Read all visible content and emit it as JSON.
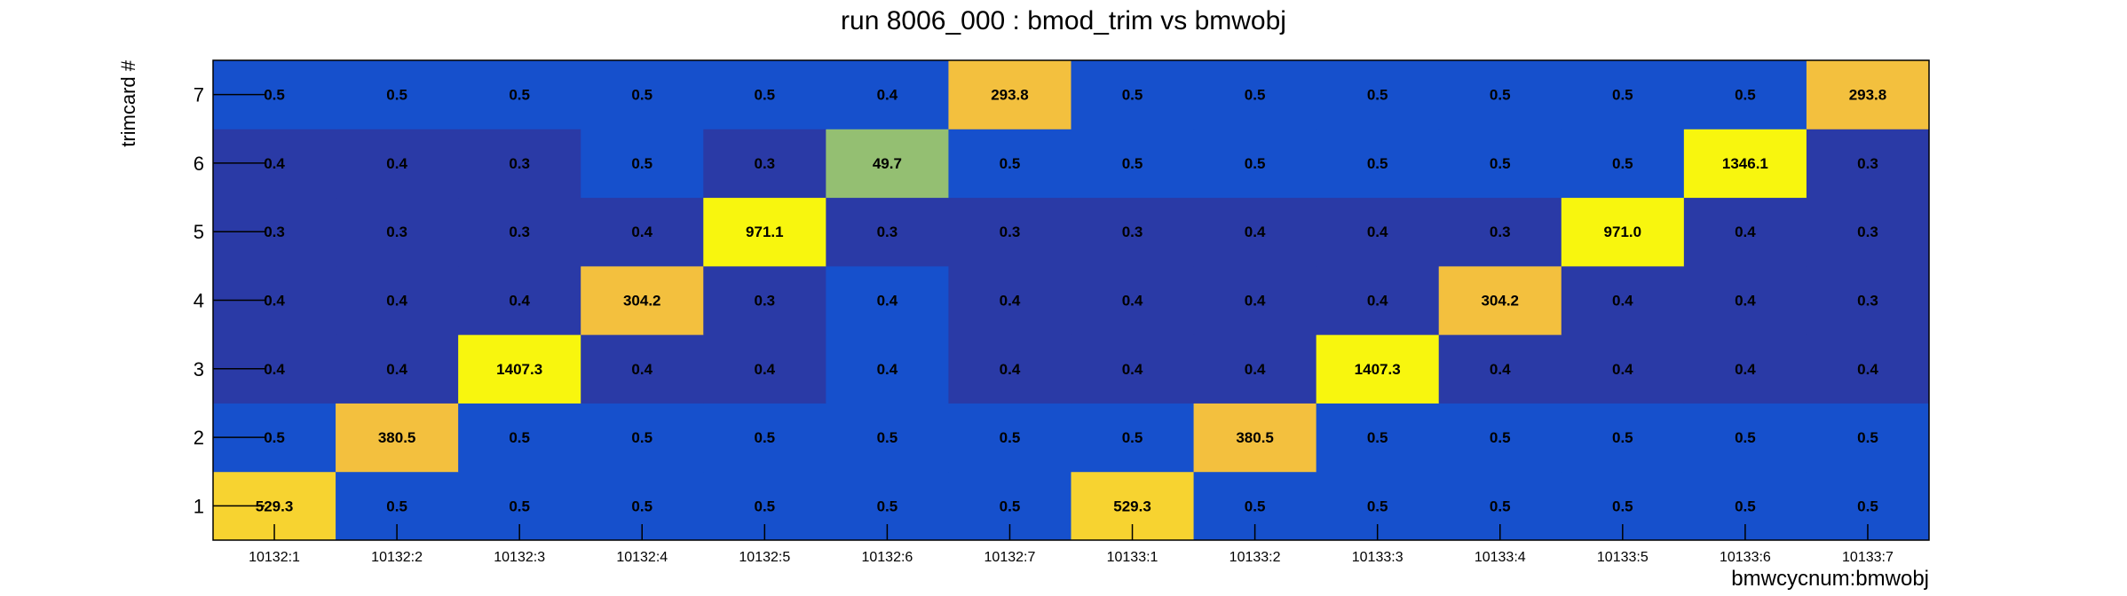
{
  "chart_data": {
    "type": "heatmap",
    "title": "run 8006_000 : bmod_trim vs bmwobj",
    "xlabel": "bmwcycnum:bmwobj",
    "ylabel": "trimcard #",
    "x_categories": [
      "10132:1",
      "10132:2",
      "10132:3",
      "10132:4",
      "10132:5",
      "10132:6",
      "10132:7",
      "10133:1",
      "10133:2",
      "10133:3",
      "10133:4",
      "10133:5",
      "10133:6",
      "10133:7"
    ],
    "y_categories": [
      "1",
      "2",
      "3",
      "4",
      "5",
      "6",
      "7"
    ],
    "values": [
      [
        529.3,
        0.5,
        0.5,
        0.5,
        0.5,
        0.5,
        0.5,
        529.3,
        0.5,
        0.5,
        0.5,
        0.5,
        0.5,
        0.5
      ],
      [
        0.5,
        380.5,
        0.5,
        0.5,
        0.5,
        0.5,
        0.5,
        0.5,
        380.5,
        0.5,
        0.5,
        0.5,
        0.5,
        0.5
      ],
      [
        0.4,
        0.4,
        1407.3,
        0.4,
        0.4,
        0.4,
        0.4,
        0.4,
        0.4,
        1407.3,
        0.4,
        0.4,
        0.4,
        0.4
      ],
      [
        0.4,
        0.4,
        0.4,
        304.2,
        0.3,
        0.4,
        0.4,
        0.4,
        0.4,
        0.4,
        304.2,
        0.4,
        0.4,
        0.3
      ],
      [
        0.3,
        0.3,
        0.3,
        0.4,
        971.1,
        0.3,
        0.3,
        0.3,
        0.4,
        0.4,
        0.3,
        971.0,
        0.4,
        0.3
      ],
      [
        0.4,
        0.4,
        0.3,
        0.5,
        0.3,
        49.7,
        0.5,
        0.5,
        0.5,
        0.5,
        0.5,
        0.5,
        1346.1,
        0.3
      ],
      [
        0.5,
        0.5,
        0.5,
        0.5,
        0.5,
        0.4,
        293.8,
        0.5,
        0.5,
        0.5,
        0.5,
        0.5,
        0.5,
        293.8
      ]
    ],
    "cell_colors": [
      [
        "#f7d330",
        "#1650cc",
        "#1650cc",
        "#1650cc",
        "#1650cc",
        "#1650cc",
        "#1650cc",
        "#f7d330",
        "#1650cc",
        "#1650cc",
        "#1650cc",
        "#1650cc",
        "#1650cc",
        "#1650cc"
      ],
      [
        "#1650cc",
        "#f3c03e",
        "#1650cc",
        "#1650cc",
        "#1650cc",
        "#1650cc",
        "#1650cc",
        "#1650cc",
        "#f3c03e",
        "#1650cc",
        "#1650cc",
        "#1650cc",
        "#1650cc",
        "#1650cc"
      ],
      [
        "#2a3aa6",
        "#2a3aa6",
        "#f8f60e",
        "#2a3aa6",
        "#2a3aa6",
        "#1650cc",
        "#2a3aa6",
        "#2a3aa6",
        "#2a3aa6",
        "#f8f60e",
        "#2a3aa6",
        "#2a3aa6",
        "#2a3aa6",
        "#2a3aa6"
      ],
      [
        "#2a3aa6",
        "#2a3aa6",
        "#2a3aa6",
        "#f3c03e",
        "#2a3aa6",
        "#1650cc",
        "#2a3aa6",
        "#2a3aa6",
        "#2a3aa6",
        "#2a3aa6",
        "#f3c03e",
        "#2a3aa6",
        "#2a3aa6",
        "#2a3aa6"
      ],
      [
        "#2a3aa6",
        "#2a3aa6",
        "#2a3aa6",
        "#2a3aa6",
        "#f8f60e",
        "#2a3aa6",
        "#2a3aa6",
        "#2a3aa6",
        "#2a3aa6",
        "#2a3aa6",
        "#2a3aa6",
        "#f8f60e",
        "#2a3aa6",
        "#2a3aa6"
      ],
      [
        "#2a3aa6",
        "#2a3aa6",
        "#2a3aa6",
        "#1650cc",
        "#2a3aa6",
        "#94bf72",
        "#1650cc",
        "#1650cc",
        "#1650cc",
        "#1650cc",
        "#1650cc",
        "#1650cc",
        "#f8f60e",
        "#2a3aa6"
      ],
      [
        "#1650cc",
        "#1650cc",
        "#1650cc",
        "#1650cc",
        "#1650cc",
        "#1650cc",
        "#f3c03e",
        "#1650cc",
        "#1650cc",
        "#1650cc",
        "#1650cc",
        "#1650cc",
        "#1650cc",
        "#f3c03e"
      ]
    ],
    "grid": false,
    "legend": "none"
  }
}
